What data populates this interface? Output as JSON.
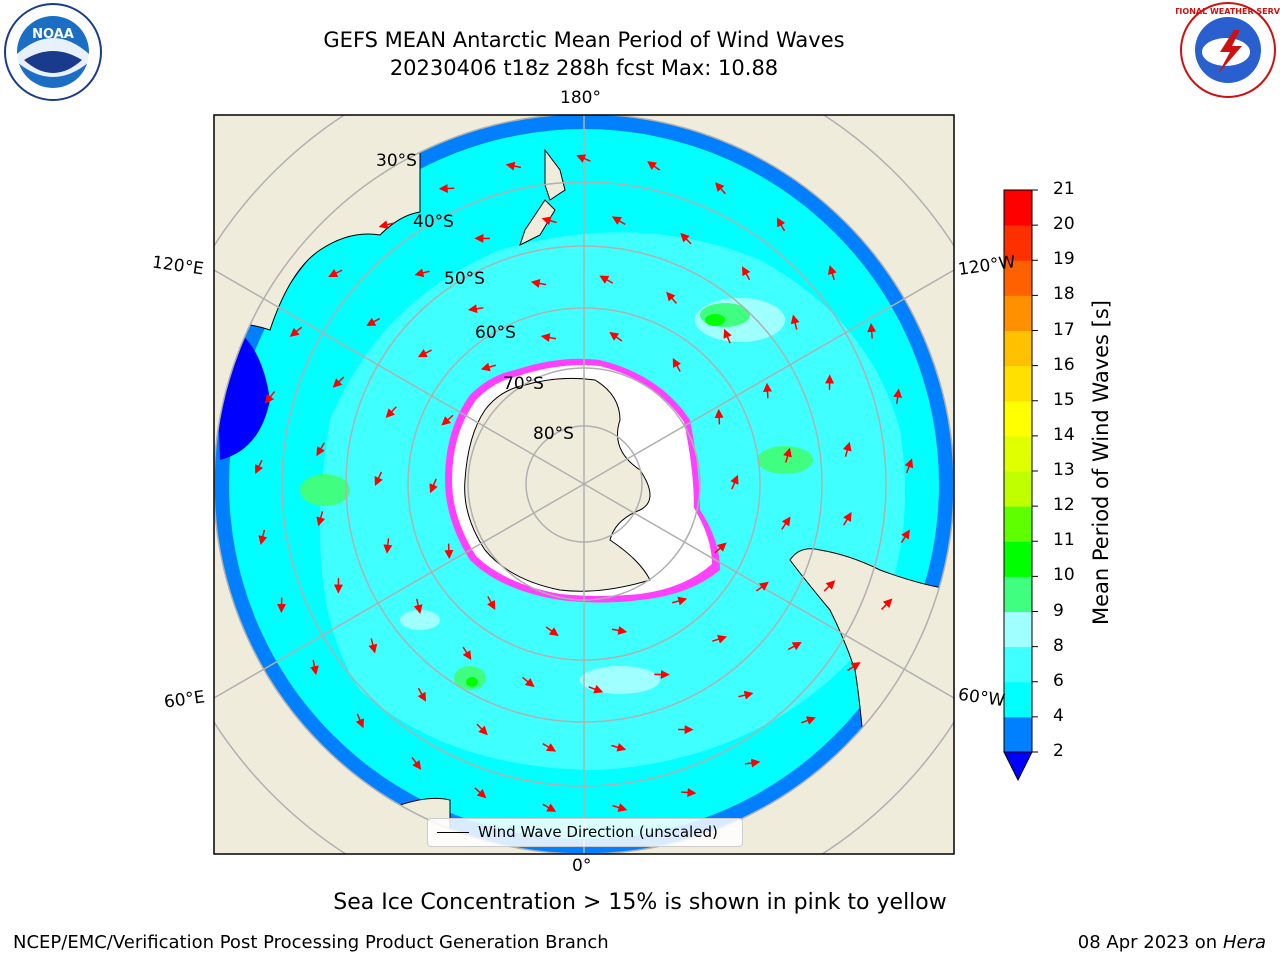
{
  "header": {
    "title_line1": "GEFS MEAN Antarctic Mean Period of Wind Waves",
    "title_line2": "20230406 t18z 288h fcst   Max: 10.88"
  },
  "logos": {
    "left": "NOAA",
    "right_text": "NATIONAL WEATHER SERVICE"
  },
  "map": {
    "longitude_labels": {
      "top": "180°",
      "bottom": "0°",
      "upper_left": "120°E",
      "upper_right": "120°W",
      "lower_left": "60°E",
      "lower_right": "60°W"
    },
    "latitude_labels": [
      "30°S",
      "40°S",
      "50°S",
      "60°S",
      "70°S",
      "80°S"
    ],
    "legend_label": "Wind Wave Direction (unscaled)",
    "colors": {
      "land": "#efecdc",
      "sea_ice": "#ffffff",
      "ocean_low": "#0080ff",
      "arrow": "#ff0000"
    }
  },
  "colorbar": {
    "label": "Mean Period of Wind Waves [s]",
    "ticks": [
      "2",
      "4",
      "6",
      "8",
      "9",
      "10",
      "11",
      "12",
      "13",
      "14",
      "15",
      "16",
      "17",
      "18",
      "19",
      "20",
      "21"
    ],
    "levels": [
      {
        "range": "2-4",
        "color": "#0080ff"
      },
      {
        "range": "4-6",
        "color": "#00ffff"
      },
      {
        "range": "6-8",
        "color": "#40ffff"
      },
      {
        "range": "8-9",
        "color": "#a0ffff"
      },
      {
        "range": "9-10",
        "color": "#40ff80"
      },
      {
        "range": "10-11",
        "color": "#00ff00"
      },
      {
        "range": "11-12",
        "color": "#60ff00"
      },
      {
        "range": "12-13",
        "color": "#c0ff00"
      },
      {
        "range": "13-14",
        "color": "#e0ff00"
      },
      {
        "range": "14-15",
        "color": "#ffff00"
      },
      {
        "range": "15-16",
        "color": "#ffe000"
      },
      {
        "range": "16-17",
        "color": "#ffc000"
      },
      {
        "range": "17-18",
        "color": "#ff9000"
      },
      {
        "range": "18-19",
        "color": "#ff6000"
      },
      {
        "range": "19-20",
        "color": "#ff3000"
      },
      {
        "range": "20-21",
        "color": "#ff0000"
      }
    ],
    "under_color": "#0000ff"
  },
  "notes": {
    "sea_ice": "Sea Ice Concentration > 15% is shown in pink to yellow"
  },
  "footer": {
    "left": "NCEP/EMC/Verification Post Processing Product Generation Branch",
    "right_date": "08 Apr 2023 on",
    "right_machine": "Hera"
  }
}
